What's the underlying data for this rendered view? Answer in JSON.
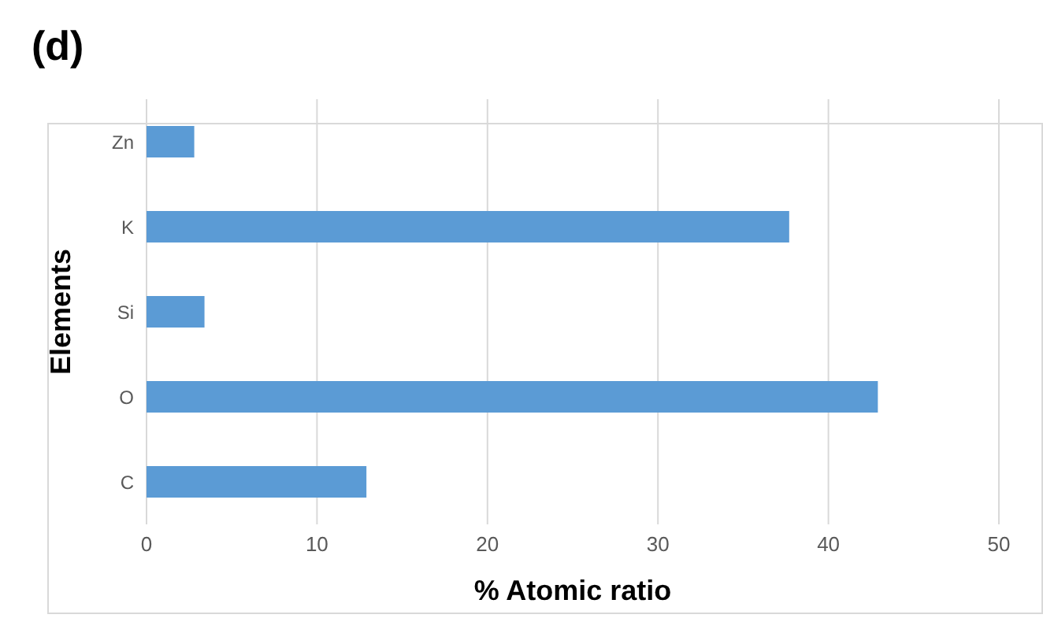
{
  "chart_data": {
    "type": "bar",
    "orientation": "horizontal",
    "title": "(d)",
    "xlabel": "% Atomic ratio",
    "ylabel": "Elements",
    "categories": [
      "Zn",
      "K",
      "Si",
      "O",
      "C"
    ],
    "values": [
      2.8,
      37.7,
      3.4,
      42.9,
      12.9
    ],
    "color": "#5b9bd5",
    "xlim": [
      0,
      50
    ],
    "xticks": [
      0,
      10,
      20,
      30,
      40,
      50
    ],
    "grid": "x"
  }
}
